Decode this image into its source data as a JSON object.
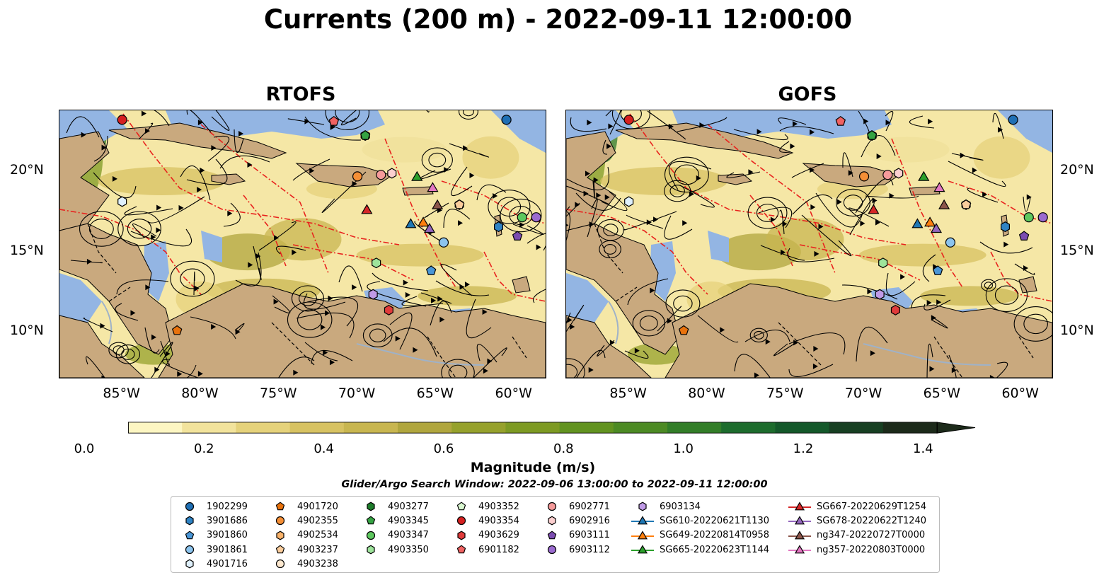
{
  "title": "Currents (200 m) - 2022-09-11 12:00:00",
  "panels": [
    {
      "title": "RTOFS"
    },
    {
      "title": "GOFS"
    }
  ],
  "lat_labels": [
    "20°N",
    "15°N",
    "10°N"
  ],
  "lon_labels": [
    "85°W",
    "80°W",
    "75°W",
    "70°W",
    "65°W",
    "60°W"
  ],
  "colorbar": {
    "label": "Magnitude (m/s)",
    "ticks": [
      "0.0",
      "0.2",
      "0.4",
      "0.6",
      "0.8",
      "1.0",
      "1.2",
      "1.4"
    ],
    "range": [
      0,
      1.5
    ],
    "colors": [
      "#fdf6c2",
      "#f2e39c",
      "#e5d27b",
      "#d7c262",
      "#c8b650",
      "#b0a63e",
      "#96a12c",
      "#7d9a23",
      "#629320",
      "#4c8a24",
      "#327d28",
      "#1d6c2d",
      "#14582a",
      "#173f22",
      "#1c2a1a"
    ]
  },
  "search_window": "Glider/Argo Search Window: 2022-09-06 13:00:00 to 2022-09-11 12:00:00",
  "legend": {
    "columns": [
      [
        {
          "label": "1902299",
          "marker": "circle",
          "color": "#1f6fb4"
        },
        {
          "label": "3901686",
          "marker": "hexagon",
          "color": "#2f83c4"
        },
        {
          "label": "3901860",
          "marker": "pentagon",
          "color": "#4a96d6"
        },
        {
          "label": "3901861",
          "marker": "circle",
          "color": "#8cc4ee"
        },
        {
          "label": "4901716",
          "marker": "hexagon",
          "color": "#dff0fc"
        }
      ],
      [
        {
          "label": "4901720",
          "marker": "pentagon",
          "color": "#e8720c"
        },
        {
          "label": "4902355",
          "marker": "circle",
          "color": "#f58f36"
        },
        {
          "label": "4902534",
          "marker": "hexagon",
          "color": "#f9b26a"
        },
        {
          "label": "4903237",
          "marker": "pentagon",
          "color": "#fbcd9c"
        },
        {
          "label": "4903238",
          "marker": "circle",
          "color": "#fde8cf"
        }
      ],
      [
        {
          "label": "4903277",
          "marker": "hexagon",
          "color": "#1e7d2b"
        },
        {
          "label": "4903345",
          "marker": "pentagon",
          "color": "#35a343"
        },
        {
          "label": "4903347",
          "marker": "circle",
          "color": "#5ec85f"
        },
        {
          "label": "4903350",
          "marker": "hexagon",
          "color": "#9ee49b"
        }
      ],
      [
        {
          "label": "4903352",
          "marker": "pentagon",
          "color": "#d9f7d0"
        },
        {
          "label": "4903354",
          "marker": "circle",
          "color": "#d62020"
        },
        {
          "label": "4903629",
          "marker": "hexagon",
          "color": "#e03b3b"
        },
        {
          "label": "6901182",
          "marker": "pentagon",
          "color": "#f06262"
        }
      ],
      [
        {
          "label": "6902771",
          "marker": "circle",
          "color": "#f59a9a"
        },
        {
          "label": "6902916",
          "marker": "hexagon",
          "color": "#fcd0d0"
        },
        {
          "label": "6903111",
          "marker": "pentagon",
          "color": "#7b4cb0"
        },
        {
          "label": "6903112",
          "marker": "circle",
          "color": "#9b6bd0"
        }
      ],
      [
        {
          "label": "6903134",
          "marker": "hexagon",
          "color": "#c09ae6"
        },
        {
          "label": "SG610-20220621T1130",
          "marker": "triangle",
          "color": "#1f77b4"
        },
        {
          "label": "SG649-20220814T0958",
          "marker": "triangle",
          "color": "#ff7f0e"
        },
        {
          "label": "SG665-20220623T1144",
          "marker": "triangle",
          "color": "#2ca02c"
        }
      ],
      [
        {
          "label": "SG667-20220629T1254",
          "marker": "triangle",
          "color": "#d62728"
        },
        {
          "label": "SG678-20220622T1240",
          "marker": "triangle",
          "color": "#9467bd"
        },
        {
          "label": "ng347-20220727T0000",
          "marker": "triangle",
          "color": "#8c564b"
        },
        {
          "label": "ng357-20220803T0000",
          "marker": "triangle",
          "color": "#e377c2"
        }
      ]
    ]
  },
  "map": {
    "extent_lon": [
      -89,
      -58
    ],
    "extent_lat": [
      7,
      24
    ],
    "ocean_color": "#f5e7a6",
    "land_color": "#c9a97e",
    "shelf_color": "#93b5e3",
    "eez_line_color": "#e8231e",
    "markers": [
      {
        "label": "1902299",
        "lon": -60.5,
        "lat": 23.4
      },
      {
        "label": "3901686",
        "lon": -61.0,
        "lat": 16.6
      },
      {
        "label": "3901860",
        "lon": -65.3,
        "lat": 13.8
      },
      {
        "label": "3901861",
        "lon": -64.5,
        "lat": 15.6
      },
      {
        "label": "4901716",
        "lon": -85.0,
        "lat": 18.2
      },
      {
        "label": "4901720",
        "lon": -81.5,
        "lat": 10.0
      },
      {
        "label": "4902355",
        "lon": -70.0,
        "lat": 19.8
      },
      {
        "label": "4902534",
        "lon": -63.5,
        "lat": 18.0
      },
      {
        "label": "4903237",
        "lon": -63.5,
        "lat": 18.0
      },
      {
        "label": "4903277",
        "lon": -69.5,
        "lat": 22.4
      },
      {
        "label": "4903345",
        "lon": -69.5,
        "lat": 22.4
      },
      {
        "label": "4903347",
        "lon": -59.5,
        "lat": 17.2
      },
      {
        "label": "4903350",
        "lon": -68.8,
        "lat": 14.3
      },
      {
        "label": "4903354",
        "lon": -85.0,
        "lat": 23.4
      },
      {
        "label": "4903629",
        "lon": -68.0,
        "lat": 11.3
      },
      {
        "label": "6901182",
        "lon": -71.5,
        "lat": 23.3
      },
      {
        "label": "6902771",
        "lon": -68.5,
        "lat": 19.9
      },
      {
        "label": "6902916",
        "lon": -67.8,
        "lat": 20.0
      },
      {
        "label": "6903111",
        "lon": -59.8,
        "lat": 16.0
      },
      {
        "label": "6903112",
        "lon": -58.6,
        "lat": 17.2
      },
      {
        "label": "6903134",
        "lon": -69.0,
        "lat": 12.3
      },
      {
        "label": "SG610-20220621T1130",
        "lon": -66.6,
        "lat": 16.8
      },
      {
        "label": "SG649-20220814T0958",
        "lon": -65.8,
        "lat": 16.9
      },
      {
        "label": "SG665-20220623T1144",
        "lon": -66.2,
        "lat": 19.8
      },
      {
        "label": "SG667-20220629T1254",
        "lon": -69.4,
        "lat": 17.7
      },
      {
        "label": "SG678-20220622T1240",
        "lon": -65.4,
        "lat": 16.5
      },
      {
        "label": "ng347-20220727T0000",
        "lon": -64.9,
        "lat": 18.0
      },
      {
        "label": "ng357-20220803T0000",
        "lon": -65.2,
        "lat": 19.1
      }
    ]
  }
}
